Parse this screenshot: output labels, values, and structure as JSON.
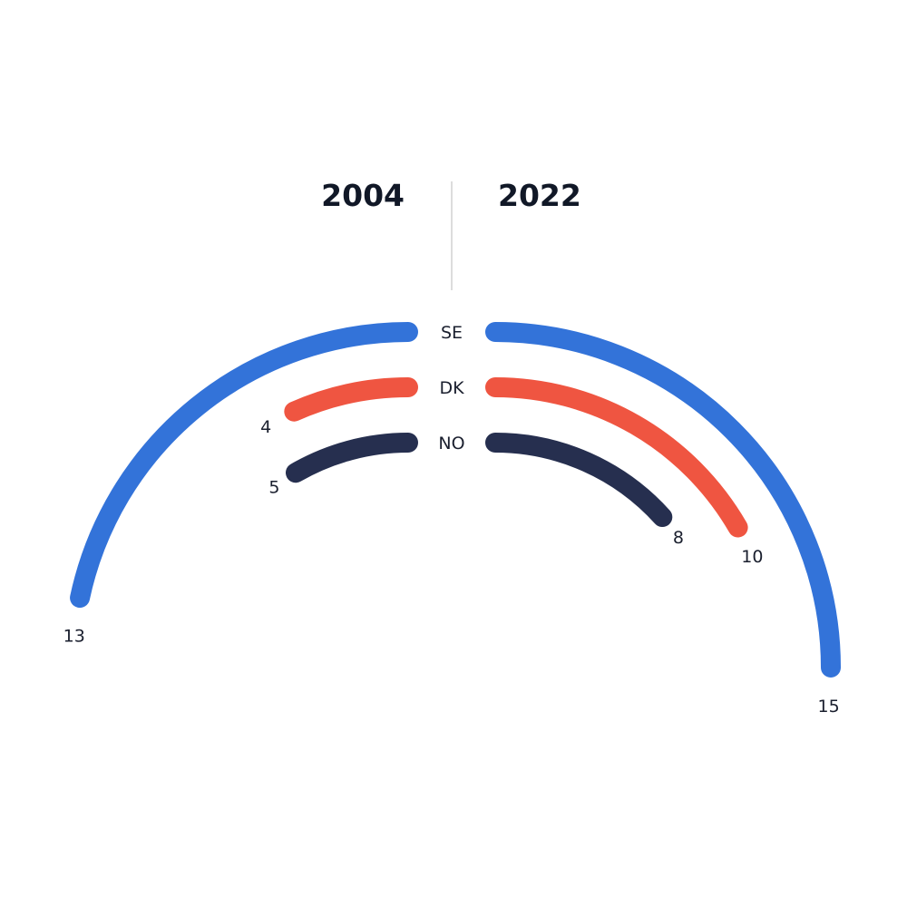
{
  "chart_data": {
    "type": "radial-bar",
    "left_title": "2004",
    "right_title": "2022",
    "series": [
      {
        "name": "SE",
        "color": "#3373D9",
        "left": 13,
        "right": 15
      },
      {
        "name": "DK",
        "color": "#EF5541",
        "left": 4,
        "right": 10
      },
      {
        "name": "NO",
        "color": "#262F4F",
        "left": 5,
        "right": 8
      }
    ],
    "divider_color": "#DDDDDD"
  }
}
